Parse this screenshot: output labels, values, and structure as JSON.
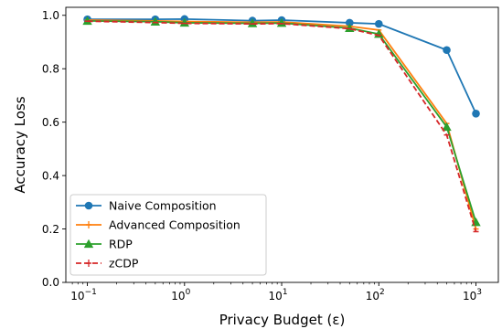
{
  "chart_data": {
    "type": "line",
    "title": "",
    "xlabel": "Privacy Budget (ε)",
    "ylabel": "Accuracy Loss",
    "x_scale": "log",
    "xlim": [
      0.06,
      1700
    ],
    "ylim": [
      0.0,
      1.03
    ],
    "x_ticks": [
      {
        "value": 0.1,
        "base": "10",
        "exp": "−1"
      },
      {
        "value": 1,
        "base": "10",
        "exp": "0"
      },
      {
        "value": 10,
        "base": "10",
        "exp": "1"
      },
      {
        "value": 100,
        "base": "10",
        "exp": "2"
      },
      {
        "value": 1000,
        "base": "10",
        "exp": "3"
      }
    ],
    "y_ticks": [
      "0.0",
      "0.2",
      "0.4",
      "0.6",
      "0.8",
      "1.0"
    ],
    "grid": false,
    "legend_position": "lower-left",
    "x": [
      0.1,
      0.5,
      1,
      5,
      10,
      50,
      100,
      500,
      1000
    ],
    "series": [
      {
        "name": "Naive Composition",
        "color": "#1f77b4",
        "marker": "circle",
        "dashed": false,
        "values": [
          0.985,
          0.985,
          0.986,
          0.98,
          0.982,
          0.972,
          0.968,
          0.87,
          0.632
        ]
      },
      {
        "name": "Advanced Composition",
        "color": "#ff7f0e",
        "marker": "bar",
        "dashed": false,
        "values": [
          0.982,
          0.979,
          0.977,
          0.974,
          0.975,
          0.959,
          0.945,
          0.595,
          0.2
        ]
      },
      {
        "name": "RDP",
        "color": "#2ca02c",
        "marker": "triangle",
        "dashed": false,
        "values": [
          0.979,
          0.976,
          0.972,
          0.97,
          0.971,
          0.952,
          0.93,
          0.582,
          0.225
        ]
      },
      {
        "name": "zCDP",
        "color": "#d62728",
        "marker": "bar",
        "dashed": true,
        "values": [
          0.978,
          0.973,
          0.97,
          0.968,
          0.969,
          0.95,
          0.925,
          0.552,
          0.19
        ]
      }
    ]
  }
}
